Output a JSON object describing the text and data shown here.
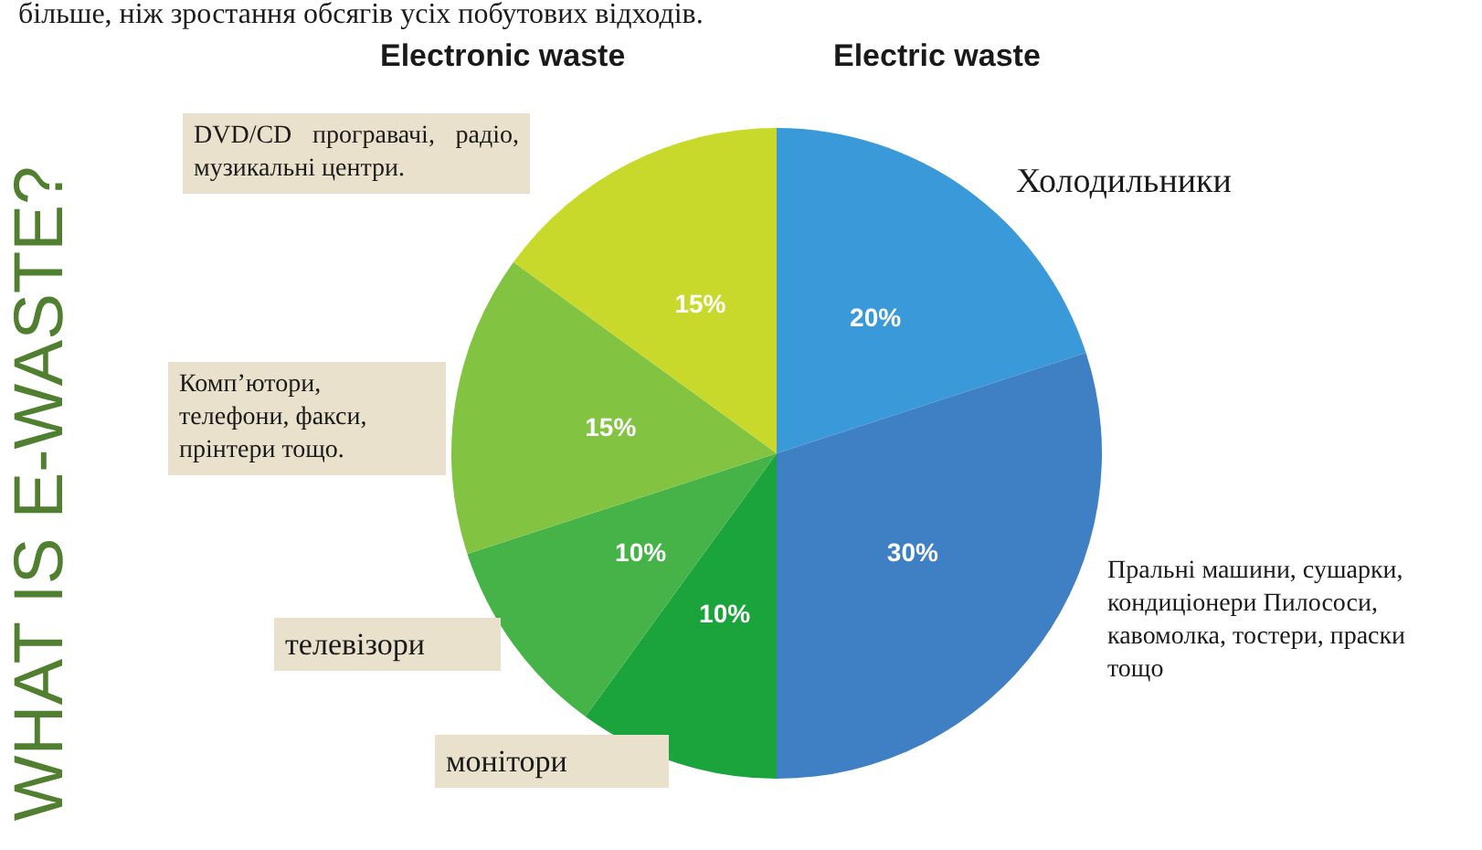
{
  "chart_data": {
    "type": "pie",
    "title": "WHAT IS E-WASTE?",
    "categories": [
      "Холодильники",
      "Пральні машини, сушарки, кондиціонери Пилососи, кавомолка, тостери, праски тощо",
      "монітори",
      "телевізори",
      "Комп’ютори, телефони, факси, прінтери тощо.",
      "DVD/CD програвачі, радіо, музикальні центри."
    ],
    "values": [
      20,
      30,
      10,
      10,
      15,
      15
    ],
    "colors": [
      "#3a9ad9",
      "#3f7fc4",
      "#1ba33c",
      "#45b347",
      "#82c341",
      "#c8d92c"
    ],
    "value_labels": [
      "20%",
      "30%",
      "10%",
      "10%",
      "15%",
      "15%"
    ],
    "annotations": [
      "більше, ніж зростання обсягів усіх побутових відходів.",
      "Electronic waste",
      "Electric waste"
    ]
  }
}
